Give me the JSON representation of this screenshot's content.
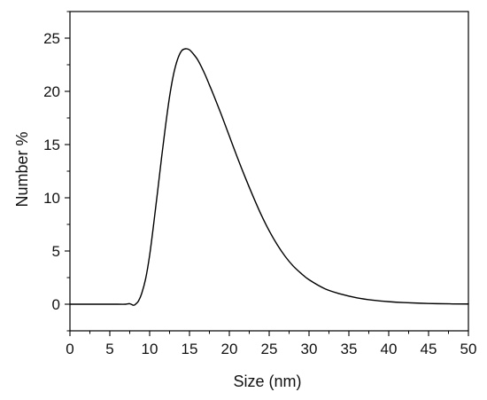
{
  "chart_data": {
    "type": "line",
    "title": "",
    "xlabel": "Size (nm)",
    "ylabel": "Number %",
    "xlim": [
      0,
      50
    ],
    "ylim": [
      -2.5,
      27.5
    ],
    "x_ticks": [
      0,
      5,
      10,
      15,
      20,
      25,
      30,
      35,
      40,
      45,
      50
    ],
    "y_ticks": [
      0,
      5,
      10,
      15,
      20,
      25
    ],
    "grid": false,
    "legend": "none",
    "line_color": "#000000",
    "series": [
      {
        "x": [
          0,
          2,
          4,
          6,
          7,
          7.5,
          8,
          8.3,
          8.6,
          9,
          9.5,
          10,
          10.5,
          11,
          11.5,
          12,
          12.5,
          13,
          13.5,
          14,
          14.5,
          15,
          15.5,
          16,
          16.5,
          17,
          17.5,
          18,
          19,
          20,
          21,
          22,
          23,
          24,
          25,
          26,
          27,
          28,
          29,
          30,
          32,
          34,
          36,
          38,
          40,
          42,
          45,
          48,
          50
        ],
        "y": [
          0,
          0,
          0,
          0,
          0,
          0.05,
          -0.1,
          0.05,
          0.3,
          1.0,
          2.4,
          4.6,
          7.5,
          10.6,
          13.8,
          16.8,
          19.5,
          21.6,
          23.0,
          23.8,
          24.0,
          23.9,
          23.5,
          23.0,
          22.3,
          21.5,
          20.6,
          19.7,
          17.8,
          15.8,
          13.8,
          11.9,
          10.1,
          8.4,
          6.9,
          5.6,
          4.5,
          3.6,
          2.9,
          2.3,
          1.45,
          0.95,
          0.6,
          0.38,
          0.24,
          0.15,
          0.07,
          0.03,
          0.02
        ]
      }
    ]
  }
}
